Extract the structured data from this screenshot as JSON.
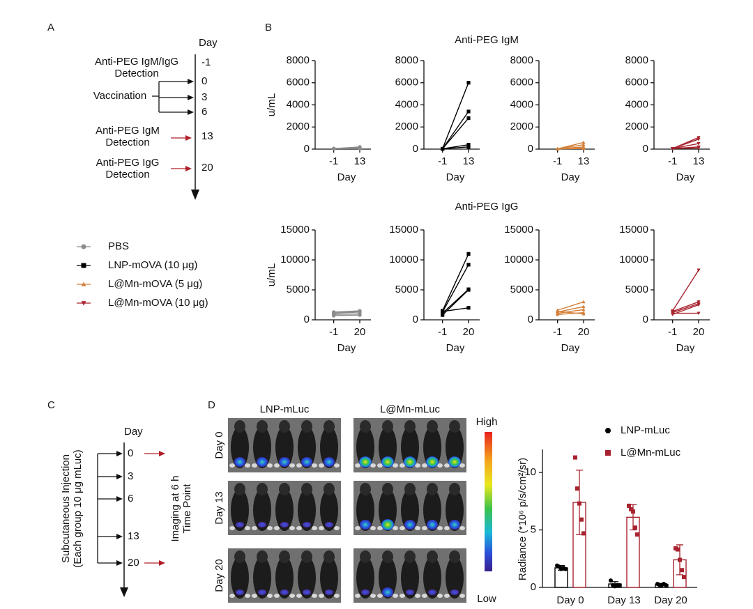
{
  "panel_labels": [
    "A",
    "B",
    "C",
    "D"
  ],
  "timeline_a": {
    "day_label": "Day",
    "days": [
      "-1",
      "0",
      "3",
      "6",
      "13",
      "20"
    ],
    "events": [
      [
        "Anti-PEG IgM/IgG",
        "Detection"
      ],
      [
        "Vaccination"
      ],
      [
        "Anti-PEG IgM",
        "Detection"
      ],
      [
        "Anti-PEG IgG",
        "Detection"
      ]
    ]
  },
  "legend_b": [
    {
      "label": "PBS",
      "color": "#8c8c8c",
      "marker": "circle"
    },
    {
      "label": "LNP-mOVA (10 μg)",
      "color": "#000000",
      "marker": "square"
    },
    {
      "label": "L@Mn-mOVA (5 μg)",
      "color": "#d4803a",
      "marker": "triangle"
    },
    {
      "label": "L@Mn-mOVA (10 μg)",
      "color": "#a8232f",
      "marker": "down-triangle"
    }
  ],
  "chart_data": [
    {
      "type": "line",
      "title": "Anti-PEG IgM",
      "ylabel": "u/mL",
      "xlabel": "Day",
      "x": [
        -1,
        13
      ],
      "xlim": [
        -11,
        19
      ],
      "ylim": [
        0,
        8000
      ],
      "yticks": [
        0,
        2000,
        4000,
        6000,
        8000
      ],
      "xticks": [
        -1,
        13
      ],
      "marker": "circle",
      "series": [
        {
          "color": "#8c8c8c",
          "values": [
            50,
            200
          ]
        },
        {
          "color": "#8c8c8c",
          "values": [
            50,
            150
          ]
        },
        {
          "color": "#8c8c8c",
          "values": [
            50,
            100
          ]
        },
        {
          "color": "#8c8c8c",
          "values": [
            50,
            120
          ]
        },
        {
          "color": "#8c8c8c",
          "values": [
            50,
            50
          ]
        }
      ]
    },
    {
      "type": "line",
      "xlabel": "Day",
      "x": [
        -1,
        13
      ],
      "xlim": [
        -11,
        19
      ],
      "ylim": [
        0,
        8000
      ],
      "yticks": [
        0,
        2000,
        4000,
        6000,
        8000
      ],
      "xticks": [
        -1,
        13
      ],
      "marker": "square",
      "series": [
        {
          "color": "#000000",
          "values": [
            30,
            6000
          ]
        },
        {
          "color": "#000000",
          "values": [
            30,
            3400
          ]
        },
        {
          "color": "#000000",
          "values": [
            30,
            2800
          ]
        },
        {
          "color": "#000000",
          "values": [
            30,
            400
          ]
        },
        {
          "color": "#000000",
          "values": [
            30,
            200
          ]
        }
      ]
    },
    {
      "type": "line",
      "xlabel": "Day",
      "x": [
        -1,
        13
      ],
      "xlim": [
        -11,
        19
      ],
      "ylim": [
        0,
        8000
      ],
      "yticks": [
        0,
        2000,
        4000,
        6000,
        8000
      ],
      "xticks": [
        -1,
        13
      ],
      "marker": "triangle",
      "series": [
        {
          "color": "#d4803a",
          "values": [
            30,
            600
          ]
        },
        {
          "color": "#d4803a",
          "values": [
            30,
            400
          ]
        },
        {
          "color": "#d4803a",
          "values": [
            30,
            200
          ]
        },
        {
          "color": "#d4803a",
          "values": [
            30,
            100
          ]
        },
        {
          "color": "#d4803a",
          "values": [
            30,
            50
          ]
        }
      ]
    },
    {
      "type": "line",
      "xlabel": "Day",
      "x": [
        -1,
        13
      ],
      "xlim": [
        -11,
        19
      ],
      "ylim": [
        0,
        8000
      ],
      "yticks": [
        0,
        2000,
        4000,
        6000,
        8000
      ],
      "xticks": [
        -1,
        13
      ],
      "marker": "down-triangle",
      "series": [
        {
          "color": "#a8232f",
          "values": [
            50,
            1050
          ]
        },
        {
          "color": "#a8232f",
          "values": [
            50,
            900
          ]
        },
        {
          "color": "#a8232f",
          "values": [
            50,
            500
          ]
        },
        {
          "color": "#a8232f",
          "values": [
            50,
            200
          ]
        },
        {
          "color": "#a8232f",
          "values": [
            50,
            100
          ]
        }
      ]
    },
    {
      "type": "line",
      "title": "Anti-PEG IgG",
      "ylabel": "u/mL",
      "xlabel": "Day",
      "x": [
        -1,
        20
      ],
      "xlim": [
        -16,
        29
      ],
      "ylim": [
        0,
        15000
      ],
      "yticks": [
        0,
        5000,
        10000,
        15000
      ],
      "xticks": [
        -1,
        20
      ],
      "marker": "circle",
      "series": [
        {
          "color": "#8c8c8c",
          "values": [
            1300,
            1500
          ]
        },
        {
          "color": "#8c8c8c",
          "values": [
            1100,
            1300
          ]
        },
        {
          "color": "#8c8c8c",
          "values": [
            900,
            1000
          ]
        },
        {
          "color": "#8c8c8c",
          "values": [
            700,
            800
          ]
        },
        {
          "color": "#8c8c8c",
          "values": [
            1200,
            1400
          ]
        }
      ]
    },
    {
      "type": "line",
      "xlabel": "Day",
      "x": [
        -1,
        20
      ],
      "xlim": [
        -16,
        29
      ],
      "ylim": [
        0,
        15000
      ],
      "yticks": [
        0,
        5000,
        10000,
        15000
      ],
      "xticks": [
        -1,
        20
      ],
      "marker": "square",
      "series": [
        {
          "color": "#000000",
          "values": [
            1500,
            11000
          ]
        },
        {
          "color": "#000000",
          "values": [
            1300,
            9200
          ]
        },
        {
          "color": "#000000",
          "values": [
            1100,
            5100
          ]
        },
        {
          "color": "#000000",
          "values": [
            800,
            5000
          ]
        },
        {
          "color": "#000000",
          "values": [
            1400,
            2000
          ]
        }
      ]
    },
    {
      "type": "line",
      "xlabel": "Day",
      "x": [
        -1,
        20
      ],
      "xlim": [
        -16,
        29
      ],
      "ylim": [
        0,
        15000
      ],
      "yticks": [
        0,
        5000,
        10000,
        15000
      ],
      "xticks": [
        -1,
        20
      ],
      "marker": "triangle",
      "series": [
        {
          "color": "#d4803a",
          "values": [
            1600,
            3000
          ]
        },
        {
          "color": "#d4803a",
          "values": [
            1300,
            2200
          ]
        },
        {
          "color": "#d4803a",
          "values": [
            1100,
            1700
          ]
        },
        {
          "color": "#d4803a",
          "values": [
            900,
            1200
          ]
        },
        {
          "color": "#d4803a",
          "values": [
            1400,
            1000
          ]
        }
      ]
    },
    {
      "type": "line",
      "xlabel": "Day",
      "x": [
        -1,
        20
      ],
      "xlim": [
        -16,
        29
      ],
      "ylim": [
        0,
        15000
      ],
      "yticks": [
        0,
        5000,
        10000,
        15000
      ],
      "xticks": [
        -1,
        20
      ],
      "marker": "down-triangle",
      "series": [
        {
          "color": "#a8232f",
          "values": [
            1500,
            8300
          ]
        },
        {
          "color": "#a8232f",
          "values": [
            1400,
            3000
          ]
        },
        {
          "color": "#a8232f",
          "values": [
            1200,
            2700
          ]
        },
        {
          "color": "#a8232f",
          "values": [
            900,
            2500
          ]
        },
        {
          "color": "#a8232f",
          "values": [
            1100,
            1100
          ]
        }
      ]
    },
    {
      "type": "bar",
      "ylabel": "Radiance (*10⁶ p/s/cm²/sr)",
      "categories": [
        "Day 0",
        "Day 13",
        "Day 20"
      ],
      "ylim": [
        0,
        12
      ],
      "yticks": [
        0,
        5,
        10
      ],
      "series": [
        {
          "name": "LNP-mLuc",
          "color": "#000000",
          "marker": "circle",
          "values": [
            1.7,
            0.3,
            0.25
          ],
          "errors": [
            0.2,
            0.2,
            0.1
          ],
          "points": [
            [
              1.9,
              1.8,
              1.6,
              1.7,
              1.6
            ],
            [
              0.6,
              0.2,
              0.1,
              0.2,
              0.2
            ],
            [
              0.3,
              0.2,
              0.2,
              0.3,
              0.2
            ]
          ]
        },
        {
          "name": "L@Mn-mLuc",
          "color": "#a8232f",
          "marker": "square",
          "values": [
            7.4,
            6.1,
            2.4
          ],
          "errors": [
            2.8,
            1.1,
            1.3
          ],
          "points": [
            [
              11.3,
              8.6,
              7.3,
              5.9,
              4.7
            ],
            [
              7.1,
              6.8,
              6.6,
              5.2,
              4.6
            ],
            [
              3.4,
              3.3,
              2.4,
              1.5,
              0.9
            ]
          ]
        }
      ]
    }
  ],
  "timeline_c": {
    "day_label": "Day",
    "days": [
      "0",
      "3",
      "6",
      "13",
      "20"
    ],
    "injection": [
      "Subcutaneous Injection",
      "(Each group 10 μg mLuc)"
    ],
    "imaging": [
      "Imaging at 6 h",
      "Time Point"
    ]
  },
  "imaging": {
    "columns": [
      "LNP-mLuc",
      "L@Mn-mLuc"
    ],
    "rows": [
      "Day 0",
      "Day 13",
      "Day 20"
    ],
    "scale": [
      "High",
      "Low"
    ]
  }
}
